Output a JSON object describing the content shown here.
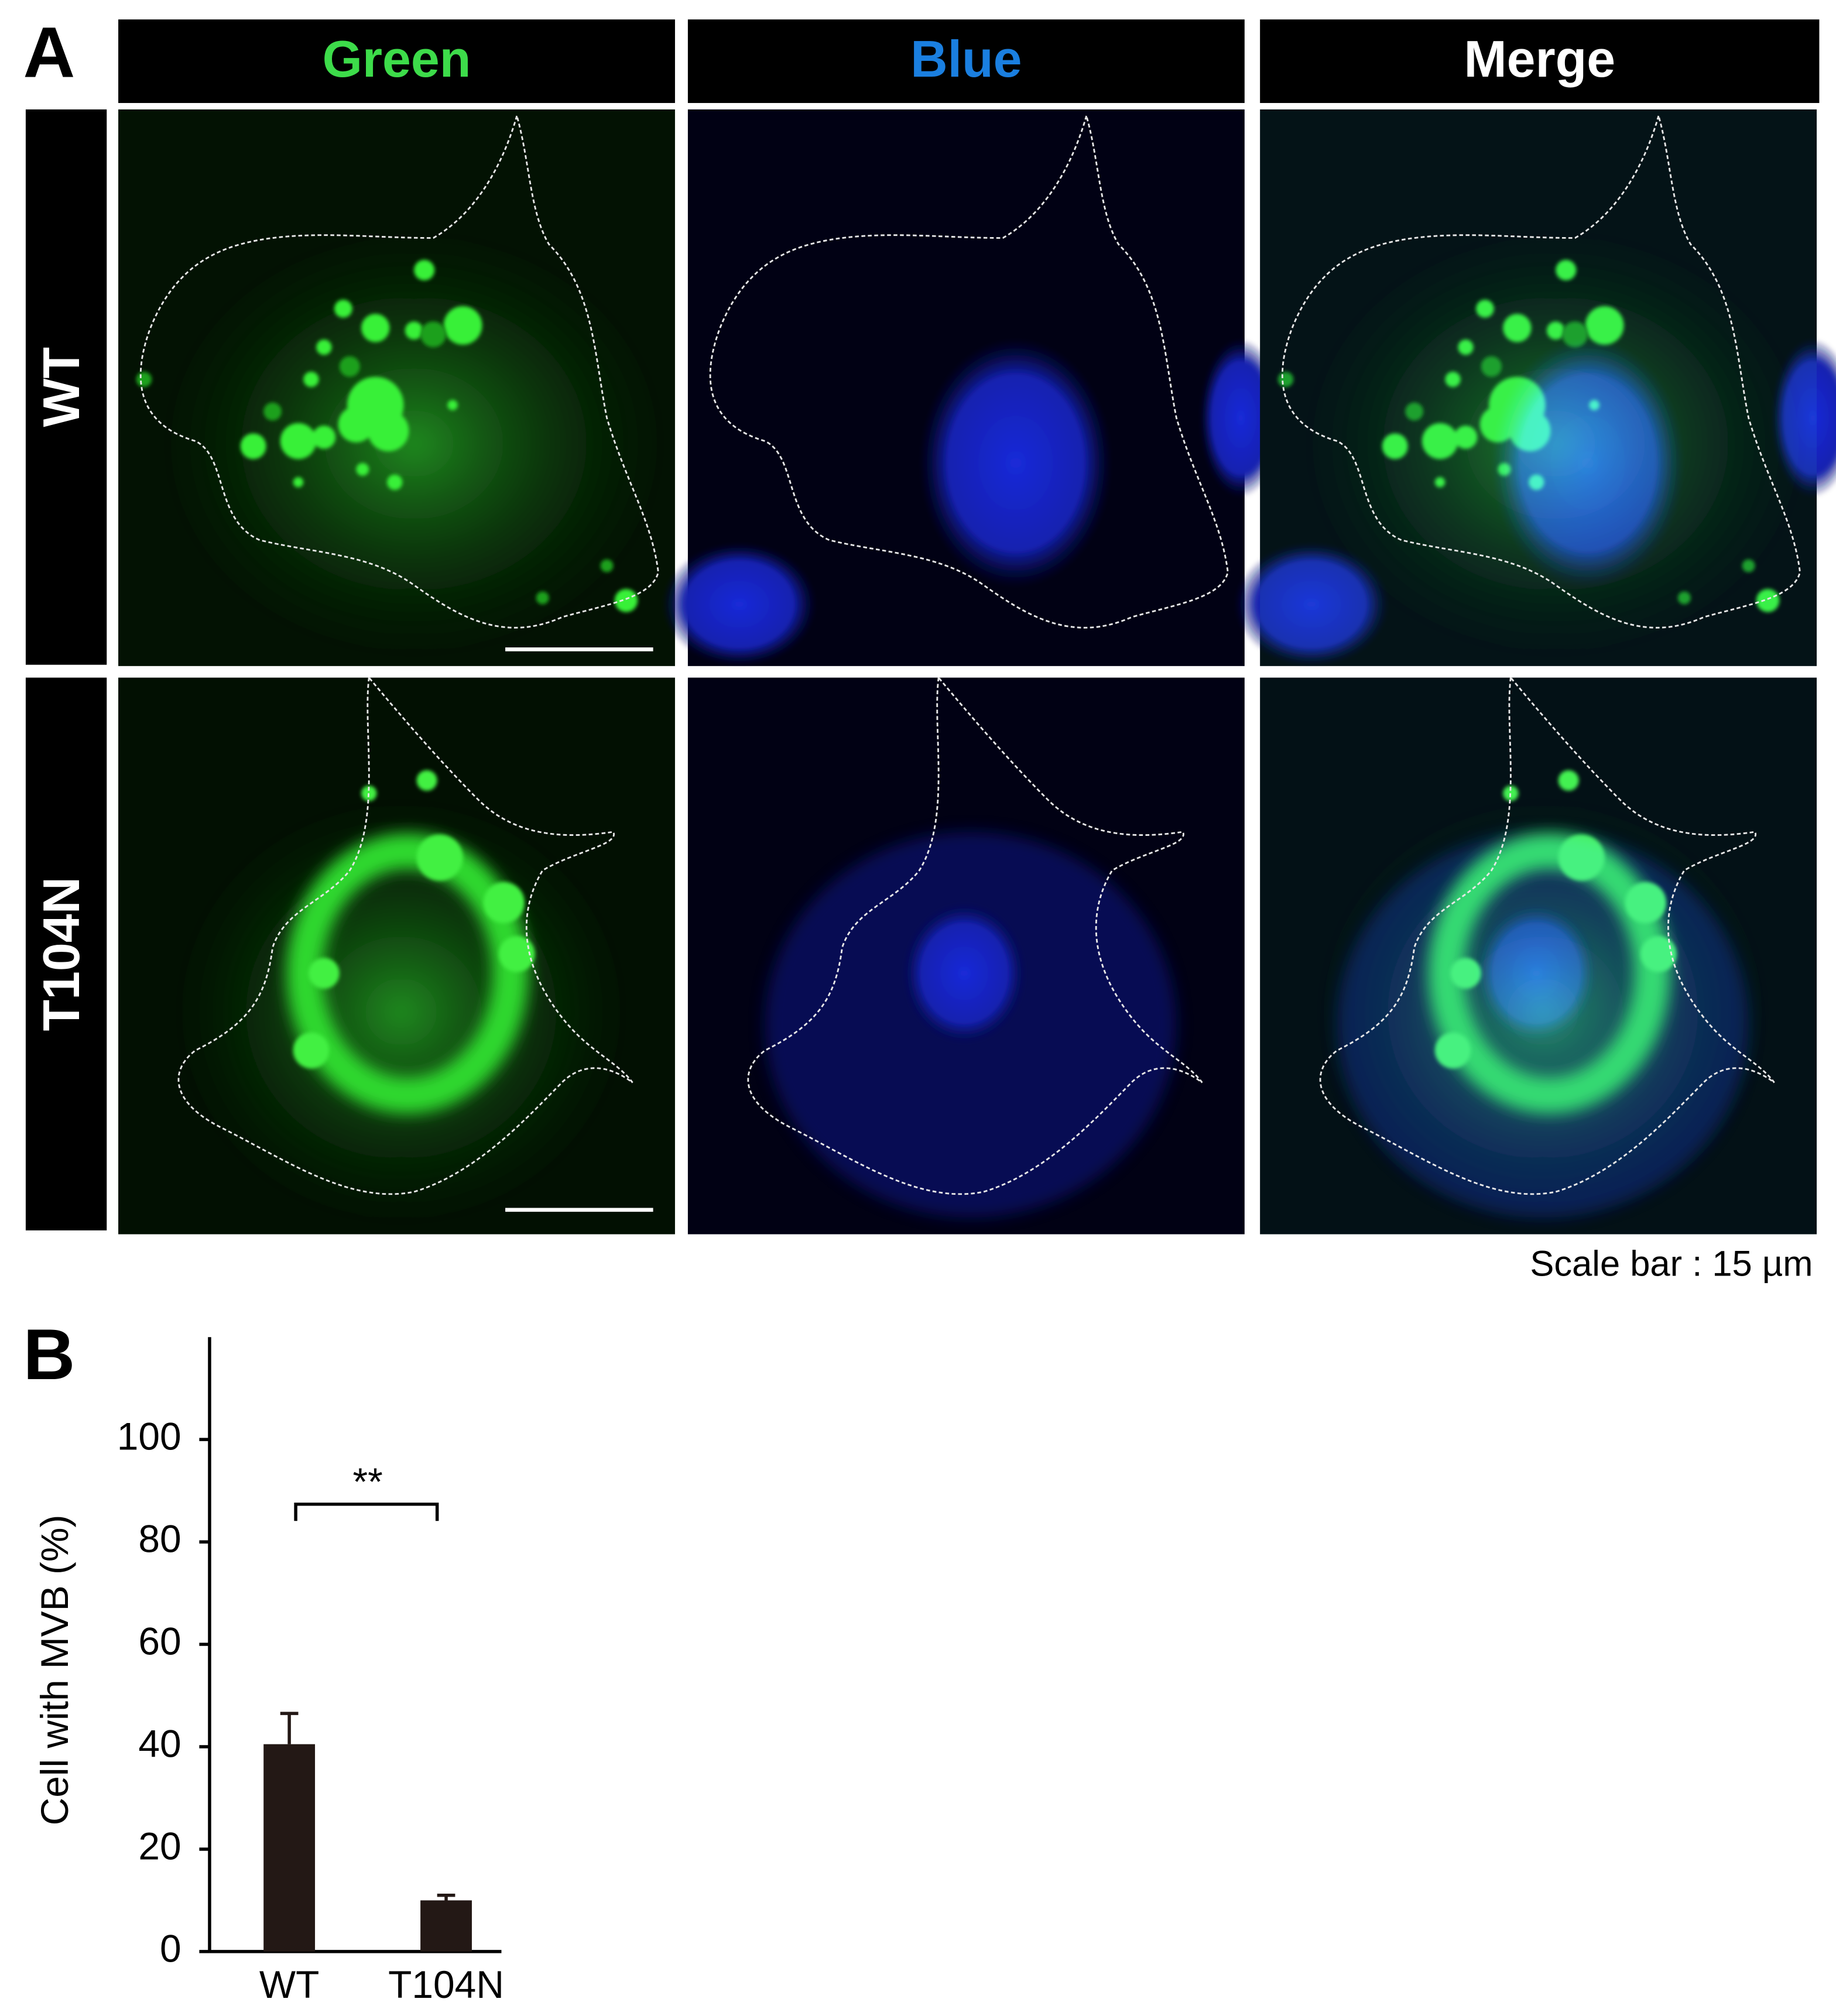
{
  "panel_a": {
    "label": "A",
    "columns": [
      "Green",
      "Blue",
      "Merge"
    ],
    "column_colors": [
      "#3ddc4a",
      "#1a7fe0",
      "#ffffff"
    ],
    "rows": [
      "WT",
      "T104N"
    ],
    "scale_bar": "Scale bar : 15 µm"
  },
  "panel_b_label": "B",
  "chart_data": {
    "type": "bar",
    "ylabel": "Cell with MVB (%)",
    "categories": [
      "WT",
      "T104N"
    ],
    "values": [
      40.5,
      10
    ],
    "errors": [
      6,
      1
    ],
    "color": "#231815",
    "ylim": [
      0,
      120
    ],
    "yticks": [
      0,
      20,
      40,
      60,
      80,
      100
    ],
    "annotation": "**"
  }
}
